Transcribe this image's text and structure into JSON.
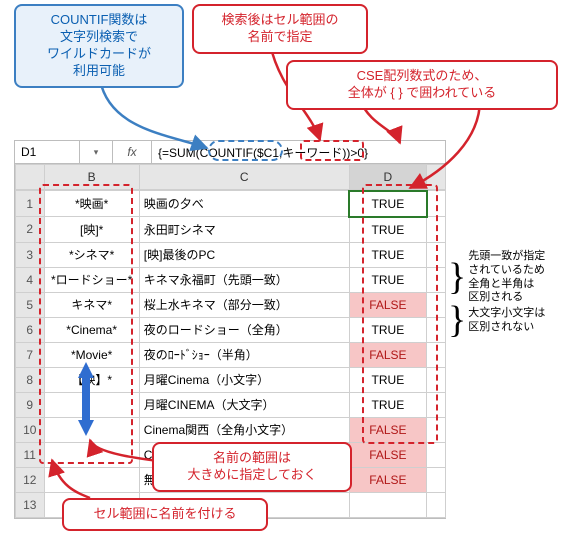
{
  "callouts": {
    "c1": "COUNTIF関数は\n文字列検索で\nワイルドカードが\n利用可能",
    "c2": "検索後はセル範囲の\n名前で指定",
    "c3": "CSE配列数式のため、\n全体が { } で囲われている",
    "c4": "名前の範囲は\n大きめに指定しておく",
    "c5": "セル範囲に名前を付ける"
  },
  "side": {
    "s1": "先頭一致が指定\nされているため\n全角と半角は\n区別される",
    "s2": "大文字小文字は\n区別されない"
  },
  "excel": {
    "active_cell": "D1",
    "formula": "{=SUM(COUNTIF($C1,キーワード))>0}",
    "headers": [
      "",
      "B",
      "C",
      "D",
      ""
    ],
    "rows": [
      {
        "n": "1",
        "b": "*映画*",
        "c": "映画の夕べ",
        "d": "TRUE",
        "dclass": "dsel"
      },
      {
        "n": "2",
        "b": "[映]*",
        "c": "永田町シネマ",
        "d": "TRUE",
        "dclass": ""
      },
      {
        "n": "3",
        "b": "*シネマ*",
        "c": "[映]最後のPC",
        "d": "TRUE",
        "dclass": ""
      },
      {
        "n": "4",
        "b": "*ロードショー*",
        "c": "キネマ永福町（先頭一致）",
        "d": "TRUE",
        "dclass": ""
      },
      {
        "n": "5",
        "b": "キネマ*",
        "c": "桜上水キネマ（部分一致）",
        "d": "FALSE",
        "dclass": "false-cell"
      },
      {
        "n": "6",
        "b": "*Cinema*",
        "c": "夜のロードショー（全角）",
        "d": "TRUE",
        "dclass": ""
      },
      {
        "n": "7",
        "b": "*Movie*",
        "c": "夜のﾛｰﾄﾞｼｮｰ（半角）",
        "d": "FALSE",
        "dclass": "false-cell"
      },
      {
        "n": "8",
        "b": "【映】*",
        "c": "月曜Cinema（小文字）",
        "d": "TRUE",
        "dclass": ""
      },
      {
        "n": "9",
        "b": "",
        "c": "月曜CINEMA（大文字）",
        "d": "TRUE",
        "dclass": ""
      },
      {
        "n": "10",
        "b": "",
        "c": "Cinema関西（全角小文字）",
        "d": "FALSE",
        "dclass": "false-cell"
      },
      {
        "n": "11",
        "b": "",
        "c": "CINEMA関西（全角大文字）",
        "d": "FALSE",
        "dclass": "false-cell"
      },
      {
        "n": "12",
        "b": "",
        "c": "無関係",
        "d": "FALSE",
        "dclass": "false-cell"
      },
      {
        "n": "13",
        "b": "",
        "c": "",
        "d": "",
        "dclass": ""
      }
    ]
  },
  "styling": {
    "blue_callout_border": "#3c7fc2",
    "blue_callout_bg": "#e8f1fa",
    "blue_callout_text": "#0a5fb1",
    "red_callout_border": "#d4232c",
    "red_callout_text": "#d4232c",
    "false_bg": "#f7c6c6",
    "false_text": "#b01717",
    "excel_header_bg": "#e6e6e6",
    "selection_border": "#2a7a2a",
    "arrow_color": "#2f6dd0"
  }
}
